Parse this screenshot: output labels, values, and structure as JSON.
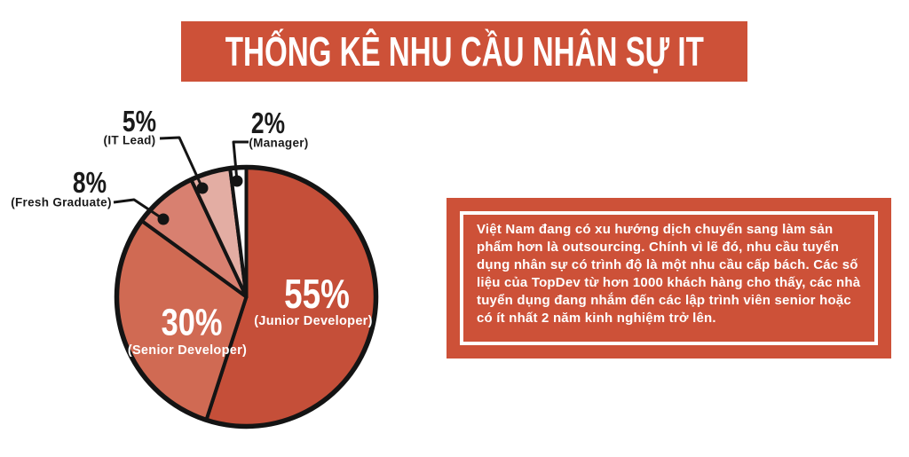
{
  "title": "THỐNG KÊ NHU CẦU NHÂN SỰ IT",
  "colors": {
    "accent": "#CD5138",
    "outline": "#141414",
    "label_dark": "#1a1a1a",
    "label_light": "#ffffff"
  },
  "chart_data": {
    "type": "pie",
    "title": "THỐNG KÊ NHU CẦU NHÂN SỰ IT",
    "start_angle_deg": 0,
    "direction": "clockwise",
    "legend": "none",
    "slices": [
      {
        "label": "Junior Developer",
        "value": 55,
        "display": "55%",
        "sublabel": "(Junior Developer)",
        "color": "#C54F39",
        "label_position": "inside"
      },
      {
        "label": "Senior Developer",
        "value": 30,
        "display": "30%",
        "sublabel": "(Senior Developer)",
        "color": "#D06A53",
        "label_position": "inside"
      },
      {
        "label": "Fresh Graduate",
        "value": 8,
        "display": "8%",
        "sublabel": "(Fresh Graduate)",
        "color": "#D88070",
        "label_position": "outside"
      },
      {
        "label": "IT Lead",
        "value": 5,
        "display": "5%",
        "sublabel": "(IT Lead)",
        "color": "#E3ADA3",
        "label_position": "outside"
      },
      {
        "label": "Manager",
        "value": 2,
        "display": "2%",
        "sublabel": "(Manager)",
        "color": "#FFFFFF",
        "label_position": "outside"
      }
    ]
  },
  "info_box": {
    "text": "Việt Nam đang có xu hướng dịch chuyển sang làm sản phẩm hơn là outsourcing. Chính vì lẽ đó, nhu cầu tuyển dụng nhân sự có trình độ là một nhu cầu cấp bách. Các số liệu của TopDev từ hơn 1000 khách hàng cho thấy, các nhà tuyển dụng đang nhắm đến các lập trình viên senior hoặc có ít nhất 2 năm kinh nghiệm trở lên."
  }
}
